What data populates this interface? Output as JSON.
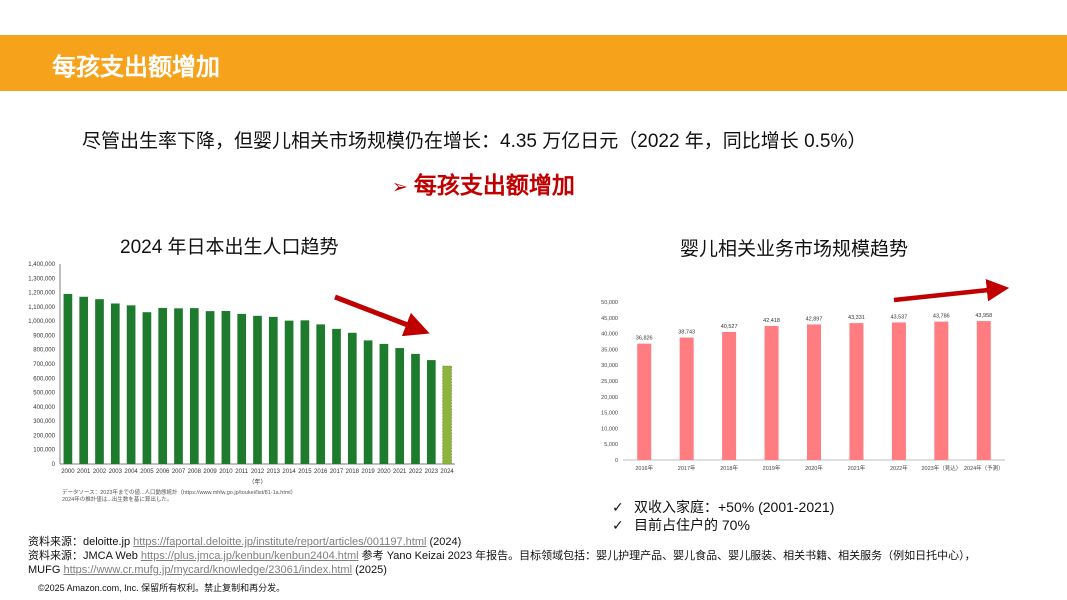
{
  "header": {
    "title": "每孩支出额增加"
  },
  "subtitle": "尽管出生率下降，但婴儿相关市场规模仍在增长：4.35 万亿日元（2022 年，同比增长 0.5%）",
  "highlight": {
    "arrow": "➢",
    "text": "每孩支出额增加"
  },
  "left_chart_title": "2024 年日本出生人口趋势",
  "right_chart_title": "婴儿相关业务市场规模趋势",
  "left_chart_note": [
    "データソース：2023年までの値...人口動態統計（https://www.mhlw.go.jp/toukei/list/81-1a.html）",
    "2024年の推計値は...出生数を基に算出した。"
  ],
  "bullets": [
    {
      "check": "✓",
      "text": "双收入家庭：+50% (2001-2021)"
    },
    {
      "check": "✓",
      "text": "目前占住户的 70%"
    }
  ],
  "sources": {
    "line1_prefix": "资料来源：deloitte.jp ",
    "line1_link": "https://faportal.deloitte.jp/institute/report/articles/001197.html",
    "line1_suffix": " (2024)",
    "line2_prefix": "资料来源：JMCA Web ",
    "line2_link": "https://plus.jmca.jp/kenbun/kenbun2404.html",
    "line2_suffix": " 参考 Yano Keizai 2023 年报告。目标领域包括：婴儿护理产品、婴儿食品、婴儿服装、相关书籍、相关服务（例如日托中心），",
    "line3_prefix": "MUFG ",
    "line3_link": "https://www.cr.mufg.jp/mycard/knowledge/23061/index.html",
    "line3_suffix": " (2025)"
  },
  "copyright": "©2025 Amazon.com, Inc. 保留所有权利。禁止复制和再分发。",
  "chart_data": [
    {
      "type": "bar",
      "xlabel": "（年）",
      "categories": [
        "2000",
        "2001",
        "2002",
        "2003",
        "2004",
        "2005",
        "2006",
        "2007",
        "2008",
        "2009",
        "2010",
        "2011",
        "2012",
        "2013",
        "2014",
        "2015",
        "2016",
        "2017",
        "2018",
        "2019",
        "2020",
        "2021",
        "2022",
        "2023",
        "2024"
      ],
      "values": [
        1190547,
        1170662,
        1153855,
        1123610,
        1110721,
        1062530,
        1092674,
        1089818,
        1091156,
        1070036,
        1071304,
        1050806,
        1037231,
        1029816,
        1003539,
        1005721,
        977242,
        946146,
        918400,
        865239,
        840835,
        811622,
        770759,
        727288,
        686061
      ],
      "ylim": [
        0,
        1400000
      ],
      "yticks": [
        "0",
        "100,000",
        "200,000",
        "300,000",
        "400,000",
        "500,000",
        "600,000",
        "700,000",
        "800,000",
        "900,000",
        "1,000,000",
        "1,100,000",
        "1,200,000",
        "1,300,000",
        "1,400,000"
      ],
      "colors": {
        "bar": "#1E7B2E",
        "last_bar": "#8DB43C",
        "trend_arrow": "#C00000"
      }
    },
    {
      "type": "bar",
      "categories": [
        "2016年",
        "2017年",
        "2018年",
        "2019年",
        "2020年",
        "2021年",
        "2022年",
        "2023年（見込）",
        "2024年（予測）"
      ],
      "values": [
        36826,
        38743,
        40527,
        42418,
        42897,
        43331,
        43537,
        43786,
        43958
      ],
      "value_labels": [
        "36,826",
        "38,743",
        "40,527",
        "42,418",
        "42,897",
        "43,331",
        "43,537",
        "43,786",
        "43,958"
      ],
      "ylim": [
        0,
        50000
      ],
      "yticks": [
        "0",
        "5,000",
        "10,000",
        "15,000",
        "20,000",
        "25,000",
        "30,000",
        "35,000",
        "40,000",
        "45,000",
        "50,000"
      ],
      "colors": {
        "bar": "#FF7C80",
        "trend_arrow": "#C00000"
      }
    }
  ]
}
